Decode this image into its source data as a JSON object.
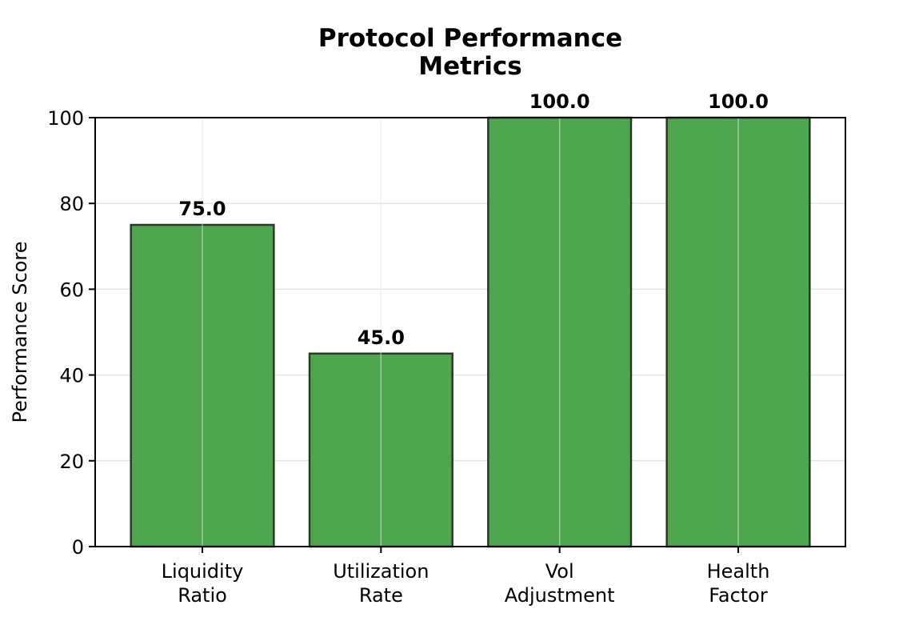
{
  "chart_data": {
    "type": "bar",
    "title_lines": [
      "Protocol Performance",
      "Metrics"
    ],
    "xlabel": "",
    "ylabel": "Performance Score",
    "categories": [
      [
        "Liquidity",
        "Ratio"
      ],
      [
        "Utilization",
        "Rate"
      ],
      [
        "Vol",
        "Adjustment"
      ],
      [
        "Health",
        "Factor"
      ]
    ],
    "values": [
      75.0,
      45.0,
      100.0,
      100.0
    ],
    "value_labels": [
      "75.0",
      "45.0",
      "100.0",
      "100.0"
    ],
    "ylim": [
      0,
      100
    ],
    "yticks": [
      0,
      20,
      40,
      60,
      80,
      100
    ],
    "grid": true,
    "legend": "none",
    "colors": {
      "bar_fill": "#4ea64e",
      "bar_edge": "#2a3a2a",
      "grid": "#e3e3e3",
      "axis": "#000000"
    }
  }
}
